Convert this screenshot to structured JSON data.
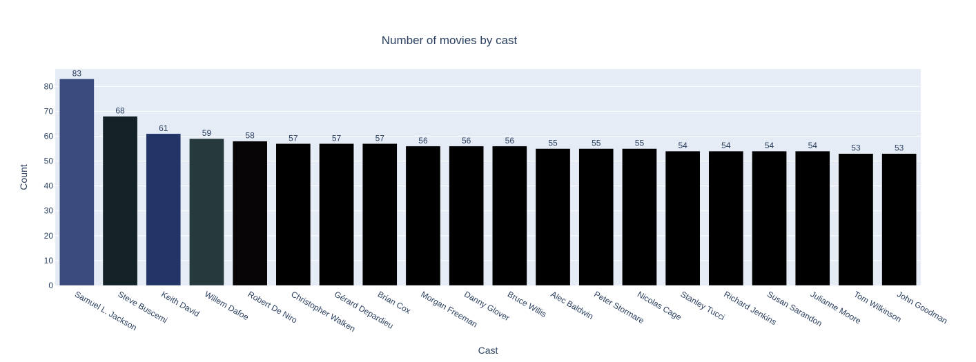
{
  "chart_data": {
    "type": "bar",
    "title": "Number of movies by cast",
    "xlabel": "Cast",
    "ylabel": "Count",
    "ylim": [
      0,
      87
    ],
    "yticks": [
      0,
      10,
      20,
      30,
      40,
      50,
      60,
      70,
      80
    ],
    "categories": [
      "Samuel L. Jackson",
      "Steve Buscemi",
      "Keith David",
      "Willem Dafoe",
      "Robert De Niro",
      "Christopher Walken",
      "Gérard Depardieu",
      "Brian Cox",
      "Morgan Freeman",
      "Danny Glover",
      "Bruce Willis",
      "Alec Baldwin",
      "Peter Stormare",
      "Nicolas Cage",
      "Stanley Tucci",
      "Richard Jenkins",
      "Susan Sarandon",
      "Julianne Moore",
      "Tom Wilkinson",
      "John Goodman"
    ],
    "values": [
      83,
      68,
      61,
      59,
      58,
      57,
      57,
      57,
      56,
      56,
      56,
      55,
      55,
      55,
      54,
      54,
      54,
      54,
      53,
      53
    ],
    "colors": [
      "#3a4a7c",
      "#132226",
      "#233466",
      "#263a3d",
      "#060404",
      "#000000",
      "#000000",
      "#000000",
      "#000000",
      "#000000",
      "#000000",
      "#000000",
      "#000000",
      "#000000",
      "#000000",
      "#000000",
      "#000000",
      "#000000",
      "#000000",
      "#000000"
    ],
    "plot_background": "#e5ecf6",
    "grid": true,
    "text_color": "#2a3f5f"
  }
}
